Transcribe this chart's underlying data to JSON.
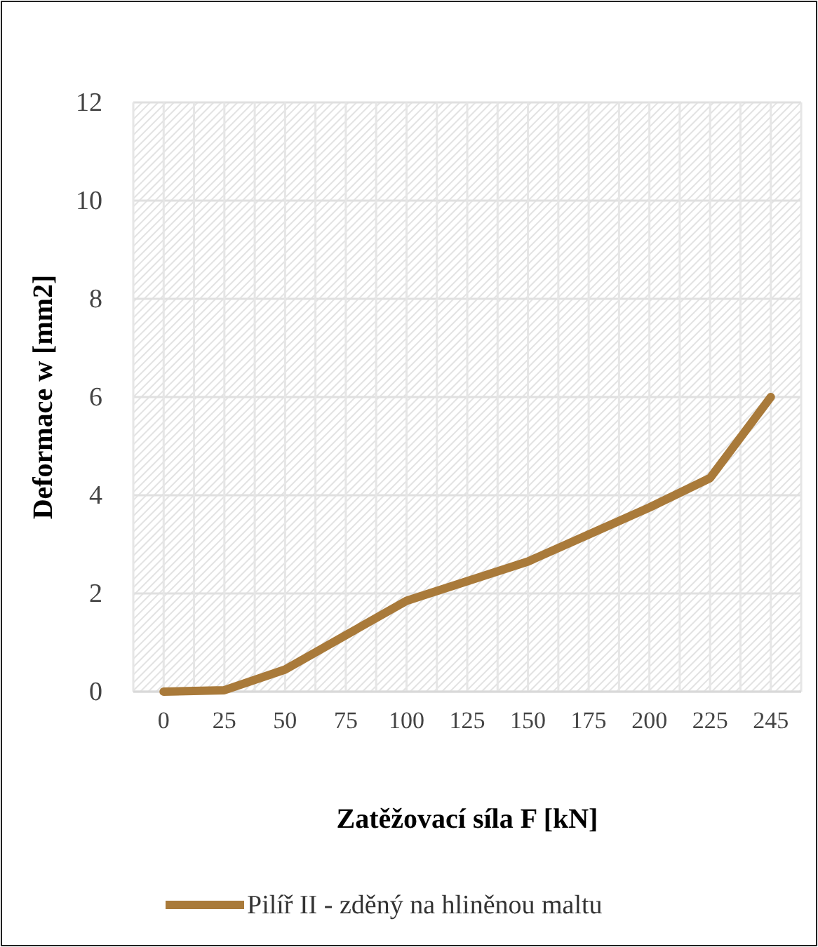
{
  "chart_data": {
    "type": "line",
    "xlabel": "Zatěžovací síla F [kN]",
    "ylabel": "Deformace w [mm2]",
    "categories": [
      "0",
      "25",
      "50",
      "75",
      "100",
      "125",
      "150",
      "175",
      "200",
      "225",
      "245"
    ],
    "series": [
      {
        "name": "Pilíř II - zděný na hliněnou maltu",
        "color": "#a97a3a",
        "values": [
          0,
          0.03,
          0.45,
          1.15,
          1.85,
          2.25,
          2.65,
          3.2,
          3.75,
          4.35,
          6.0
        ]
      }
    ],
    "ylim": [
      0,
      12
    ],
    "yticks": [
      0,
      2,
      4,
      6,
      8,
      10,
      12
    ],
    "grid": true,
    "legend": "bottom",
    "marker": "none",
    "line_style": "solid"
  }
}
